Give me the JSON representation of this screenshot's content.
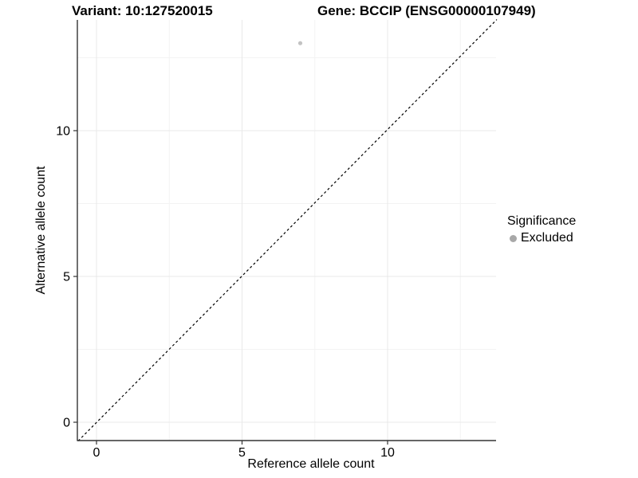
{
  "titles": {
    "variant": "Variant: 10:127520015",
    "gene": "Gene: BCCIP (ENSG00000107949)"
  },
  "legend": {
    "title": "Significance",
    "items": [
      {
        "label": "Excluded",
        "color": "#a8a8a8"
      }
    ]
  },
  "chart_data": {
    "type": "scatter",
    "title_left": "Variant: 10:127520015",
    "title_right": "Gene: BCCIP (ENSG00000107949)",
    "xlabel": "Reference allele count",
    "ylabel": "Alternative allele count",
    "x_ticks": [
      0,
      5,
      10
    ],
    "y_ticks": [
      0,
      5,
      10
    ],
    "x_minor_step": 2.5,
    "xlim": [
      -0.66,
      13.8
    ],
    "ylim": [
      -0.63,
      13.8
    ],
    "grid": true,
    "legend_position": "right",
    "series": [
      {
        "name": "Excluded",
        "points": [
          {
            "x": 7,
            "y": 13
          }
        ]
      }
    ],
    "reference_line": {
      "type": "identity",
      "slope": 1,
      "intercept": 0,
      "style": "dashed",
      "color": "#000000"
    },
    "colors": {
      "excluded_point": "#c3c3c3",
      "grid_major": "#e9e9e9",
      "grid_minor": "#f3f3f3",
      "axis": "#333333",
      "tick_text": "#000000"
    }
  }
}
